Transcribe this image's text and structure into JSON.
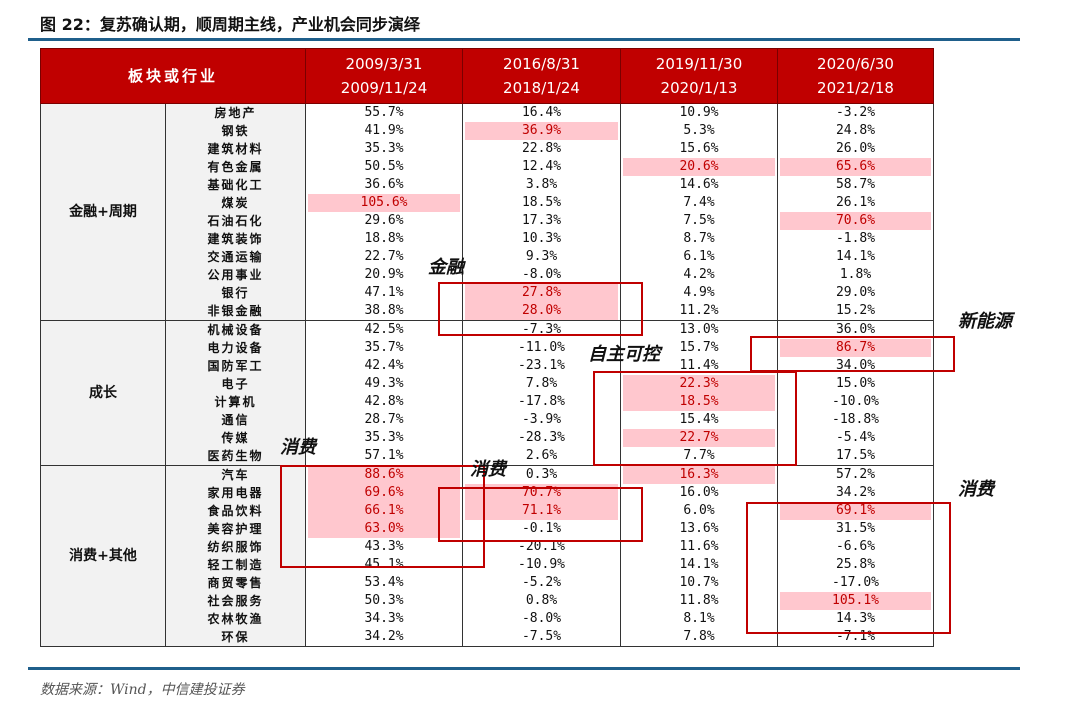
{
  "title": "图 22：复苏确认期，顺周期主线，产业机会同步演绎",
  "header": {
    "sector": "板块或行业",
    "periods": [
      [
        "2009/3/31",
        "2009/11/24"
      ],
      [
        "2016/8/31",
        "2018/1/24"
      ],
      [
        "2019/11/30",
        "2020/1/13"
      ],
      [
        "2020/6/30",
        "2021/2/18"
      ]
    ]
  },
  "groups": [
    {
      "name": "金融+周期",
      "rows": [
        {
          "name": "房地产",
          "v": [
            "55.7%",
            "16.4%",
            "10.9%",
            "-3.2%"
          ],
          "hl": []
        },
        {
          "name": "钢铁",
          "v": [
            "41.9%",
            "36.9%",
            "5.3%",
            "24.8%"
          ],
          "hl": [
            1
          ]
        },
        {
          "name": "建筑材料",
          "v": [
            "35.3%",
            "22.8%",
            "15.6%",
            "26.0%"
          ],
          "hl": []
        },
        {
          "name": "有色金属",
          "v": [
            "50.5%",
            "12.4%",
            "20.6%",
            "65.6%"
          ],
          "hl": [
            2,
            3
          ]
        },
        {
          "name": "基础化工",
          "v": [
            "36.6%",
            "3.8%",
            "14.6%",
            "58.7%"
          ],
          "hl": []
        },
        {
          "name": "煤炭",
          "v": [
            "105.6%",
            "18.5%",
            "7.4%",
            "26.1%"
          ],
          "hl": [
            0
          ]
        },
        {
          "name": "石油石化",
          "v": [
            "29.6%",
            "17.3%",
            "7.5%",
            "70.6%"
          ],
          "hl": [
            3
          ]
        },
        {
          "name": "建筑装饰",
          "v": [
            "18.8%",
            "10.3%",
            "8.7%",
            "-1.8%"
          ],
          "hl": []
        },
        {
          "name": "交通运输",
          "v": [
            "22.7%",
            "9.3%",
            "6.1%",
            "14.1%"
          ],
          "hl": []
        },
        {
          "name": "公用事业",
          "v": [
            "20.9%",
            "-8.0%",
            "4.2%",
            "1.8%"
          ],
          "hl": []
        },
        {
          "name": "银行",
          "v": [
            "47.1%",
            "27.8%",
            "4.9%",
            "29.0%"
          ],
          "hl": [
            1
          ]
        },
        {
          "name": "非银金融",
          "v": [
            "38.8%",
            "28.0%",
            "11.2%",
            "15.2%"
          ],
          "hl": [
            1
          ]
        }
      ]
    },
    {
      "name": "成长",
      "rows": [
        {
          "name": "机械设备",
          "v": [
            "42.5%",
            "-7.3%",
            "13.0%",
            "36.0%"
          ],
          "hl": []
        },
        {
          "name": "电力设备",
          "v": [
            "35.7%",
            "-11.0%",
            "15.7%",
            "86.7%"
          ],
          "hl": [
            3
          ]
        },
        {
          "name": "国防军工",
          "v": [
            "42.4%",
            "-23.1%",
            "11.4%",
            "34.0%"
          ],
          "hl": []
        },
        {
          "name": "电子",
          "v": [
            "49.3%",
            "7.8%",
            "22.3%",
            "15.0%"
          ],
          "hl": [
            2
          ]
        },
        {
          "name": "计算机",
          "v": [
            "42.8%",
            "-17.8%",
            "18.5%",
            "-10.0%"
          ],
          "hl": [
            2
          ]
        },
        {
          "name": "通信",
          "v": [
            "28.7%",
            "-3.9%",
            "15.4%",
            "-18.8%"
          ],
          "hl": []
        },
        {
          "name": "传媒",
          "v": [
            "35.3%",
            "-28.3%",
            "22.7%",
            "-5.4%"
          ],
          "hl": [
            2
          ]
        },
        {
          "name": "医药生物",
          "v": [
            "57.1%",
            "2.6%",
            "7.7%",
            "17.5%"
          ],
          "hl": []
        }
      ]
    },
    {
      "name": "消费+其他",
      "rows": [
        {
          "name": "汽车",
          "v": [
            "88.6%",
            "0.3%",
            "16.3%",
            "57.2%"
          ],
          "hl": [
            0,
            2
          ]
        },
        {
          "name": "家用电器",
          "v": [
            "69.6%",
            "70.7%",
            "16.0%",
            "34.2%"
          ],
          "hl": [
            0,
            1
          ]
        },
        {
          "name": "食品饮料",
          "v": [
            "66.1%",
            "71.1%",
            "6.0%",
            "69.1%"
          ],
          "hl": [
            0,
            1,
            3
          ]
        },
        {
          "name": "美容护理",
          "v": [
            "63.0%",
            "-0.1%",
            "13.6%",
            "31.5%"
          ],
          "hl": [
            0
          ]
        },
        {
          "name": "纺织服饰",
          "v": [
            "43.3%",
            "-20.1%",
            "11.6%",
            "-6.6%"
          ],
          "hl": []
        },
        {
          "name": "轻工制造",
          "v": [
            "45.1%",
            "-10.9%",
            "14.1%",
            "25.8%"
          ],
          "hl": []
        },
        {
          "name": "商贸零售",
          "v": [
            "53.4%",
            "-5.2%",
            "10.7%",
            "-17.0%"
          ],
          "hl": []
        },
        {
          "name": "社会服务",
          "v": [
            "50.3%",
            "0.8%",
            "11.8%",
            "105.1%"
          ],
          "hl": [
            3
          ]
        },
        {
          "name": "农林牧渔",
          "v": [
            "34.3%",
            "-8.0%",
            "8.1%",
            "14.3%"
          ],
          "hl": []
        },
        {
          "name": "环保",
          "v": [
            "34.2%",
            "-7.5%",
            "7.8%",
            "-7.1%"
          ],
          "hl": []
        }
      ]
    }
  ],
  "annotations": [
    "金融",
    "新能源",
    "自主可控",
    "消费",
    "消费",
    "消费"
  ],
  "source": "数据来源：Wind，中信建投证券",
  "colors": {
    "header": "#c00000",
    "highlight": "#ffc7ce",
    "highlight_text": "#c00000",
    "rule": "#1f5f8b"
  }
}
